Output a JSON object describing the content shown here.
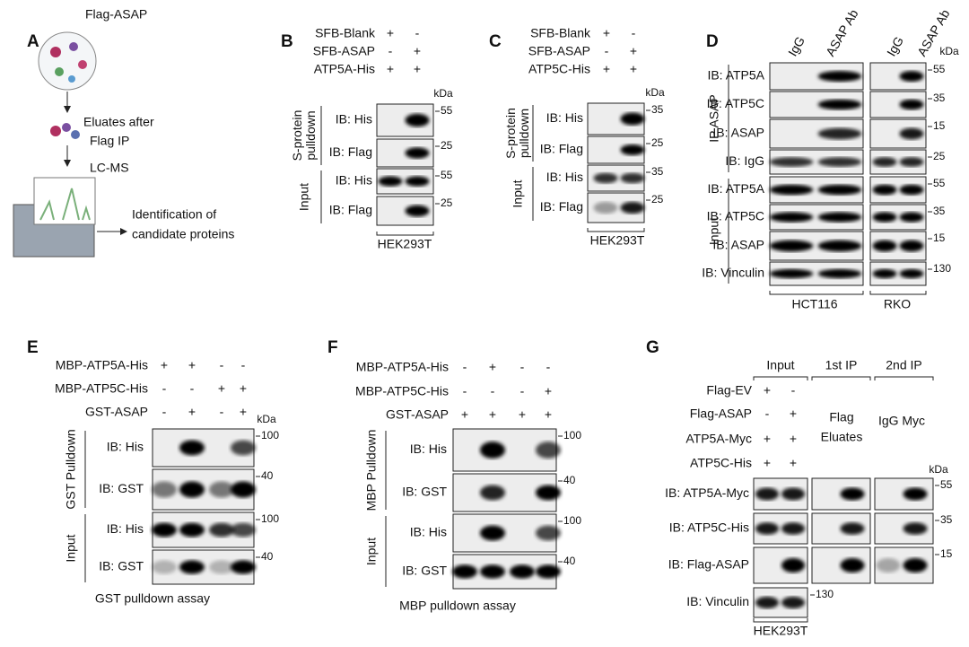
{
  "panel_a": {
    "label": "A",
    "bait": "Flag-ASAP",
    "step1": [
      "Eluates after",
      "Flag IP"
    ],
    "step2": "LC-MS",
    "result": [
      "Identification of",
      "candidate proteins"
    ]
  },
  "panel_b": {
    "label": "B",
    "treatments": [
      {
        "name": "SFB-Blank",
        "lanes": [
          "+",
          "-"
        ]
      },
      {
        "name": "SFB-ASAP",
        "lanes": [
          "-",
          "+"
        ]
      },
      {
        "name": "ATP5A-His",
        "lanes": [
          "+",
          "+"
        ]
      }
    ],
    "kda": "kDa",
    "groups": [
      [
        "S-protein",
        "pulldown"
      ],
      [
        "Input"
      ]
    ],
    "blots": [
      {
        "label": "IB: His",
        "marker": 55
      },
      {
        "label": "IB: Flag",
        "marker": 25
      },
      {
        "label": "IB: His",
        "marker": 55
      },
      {
        "label": "IB: Flag",
        "marker": 25
      }
    ],
    "cell_line": "HEK293T"
  },
  "panel_c": {
    "label": "C",
    "treatments": [
      {
        "name": "SFB-Blank",
        "lanes": [
          "+",
          "-"
        ]
      },
      {
        "name": "SFB-ASAP",
        "lanes": [
          "-",
          "+"
        ]
      },
      {
        "name": "ATP5C-His",
        "lanes": [
          "+",
          "+"
        ]
      }
    ],
    "kda": "kDa",
    "groups": [
      [
        "S-protein",
        "pulldown"
      ],
      [
        "Input"
      ]
    ],
    "blots": [
      {
        "label": "IB: His",
        "marker": 35
      },
      {
        "label": "IB: Flag",
        "marker": 25
      },
      {
        "label": "IB: His",
        "marker": 35
      },
      {
        "label": "IB: Flag",
        "marker": 25
      }
    ],
    "cell_line": "HEK293T"
  },
  "panel_d": {
    "label": "D",
    "columns": [
      "IgG",
      "ASAP Ab",
      "IgG",
      "ASAP Ab"
    ],
    "kda": "kDa",
    "groups": [
      [
        "IP ASAP"
      ],
      [
        "Input"
      ]
    ],
    "blots": [
      {
        "label": "IB: ATP5A",
        "marker": 55
      },
      {
        "label": "IB: ATP5C",
        "marker": 35
      },
      {
        "label": "IB: ASAP",
        "marker": 15
      },
      {
        "label": "IB: IgG",
        "marker": 25
      },
      {
        "label": "IB: ATP5A",
        "marker": 55
      },
      {
        "label": "IB: ATP5C",
        "marker": 35
      },
      {
        "label": "IB: ASAP",
        "marker": 15
      },
      {
        "label": "IB: Vinculin",
        "marker": 130
      }
    ],
    "cell_lines": [
      "HCT116",
      "RKO"
    ]
  },
  "panel_e": {
    "label": "E",
    "treatments": [
      {
        "name": "MBP-ATP5A-His",
        "lanes": [
          "+",
          "+",
          "-",
          "-"
        ]
      },
      {
        "name": "MBP-ATP5C-His",
        "lanes": [
          "-",
          "-",
          "+",
          "+"
        ]
      },
      {
        "name": "GST-ASAP",
        "lanes": [
          "-",
          "+",
          "-",
          "+"
        ]
      }
    ],
    "kda": "kDa",
    "groups": [
      [
        "GST Pulldown"
      ],
      [
        "Input"
      ]
    ],
    "blots": [
      {
        "label": "IB: His",
        "marker": 100
      },
      {
        "label": "IB: GST",
        "marker": 40
      },
      {
        "label": "IB: His",
        "marker": 100
      },
      {
        "label": "IB: GST",
        "marker": 40
      }
    ],
    "caption": "GST pulldown assay"
  },
  "panel_f": {
    "label": "F",
    "treatments": [
      {
        "name": "MBP-ATP5A-His",
        "lanes": [
          "-",
          "+",
          "-",
          "-"
        ]
      },
      {
        "name": "MBP-ATP5C-His",
        "lanes": [
          "-",
          "-",
          "-",
          "+"
        ]
      },
      {
        "name": "GST-ASAP",
        "lanes": [
          "+",
          "+",
          "+",
          "+"
        ]
      }
    ],
    "groups": [
      [
        "MBP Pulldown"
      ],
      [
        "Input"
      ]
    ],
    "blots": [
      {
        "label": "IB: His",
        "marker": 100
      },
      {
        "label": "IB: GST",
        "marker": 40
      },
      {
        "label": "IB: His",
        "marker": 100
      },
      {
        "label": "IB: GST",
        "marker": 40
      }
    ],
    "caption": "MBP pulldown assay"
  },
  "panel_g": {
    "label": "G",
    "headers": [
      "Input",
      "1st IP",
      "2nd IP"
    ],
    "ip_notes": [
      [
        "Flag",
        "Eluates"
      ],
      [
        "IgG Myc"
      ]
    ],
    "treatments": [
      {
        "name": "Flag-EV",
        "lanes": [
          "+",
          "-"
        ]
      },
      {
        "name": "Flag-ASAP",
        "lanes": [
          "-",
          "+"
        ]
      },
      {
        "name": "ATP5A-Myc",
        "lanes": [
          "+",
          "+"
        ]
      },
      {
        "name": "ATP5C-His",
        "lanes": [
          "+",
          "+"
        ]
      }
    ],
    "kda": "kDa",
    "blots": [
      {
        "label": "IB: ATP5A-Myc",
        "marker": 55
      },
      {
        "label": "IB: ATP5C-His",
        "marker": 35
      },
      {
        "label": "IB: Flag-ASAP",
        "marker": 15
      },
      {
        "label": "IB: Vinculin",
        "marker": 130
      }
    ],
    "cell_line": "HEK293T"
  }
}
